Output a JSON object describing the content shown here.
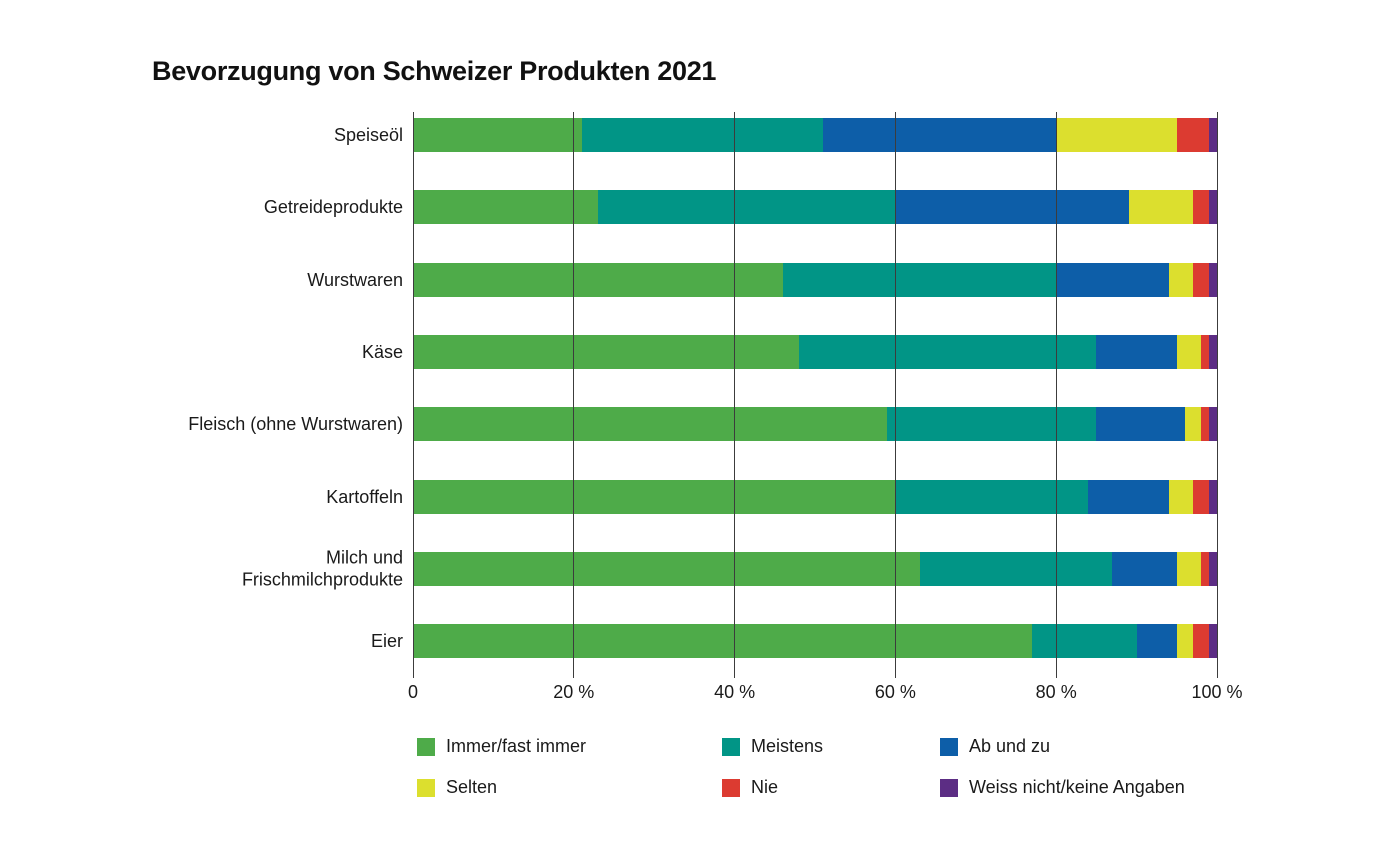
{
  "title": "Bevorzugung von Schweizer Produkten 2021",
  "chart_data": {
    "type": "bar",
    "orientation": "horizontal",
    "stacked": true,
    "title": "Bevorzugung von Schweizer Produkten 2021",
    "categories": [
      "Speiseöl",
      "Getreideprodukte",
      "Wurstwaren",
      "Käse",
      "Fleisch (ohne Wurstwaren)",
      "Kartoffeln",
      "Milch und\nFrischmilchprodukte",
      "Eier"
    ],
    "series": [
      {
        "name": "Immer/fast immer",
        "color": "#4EAB49",
        "values": [
          21,
          23,
          46,
          48,
          59,
          60,
          63,
          77
        ]
      },
      {
        "name": "Meistens",
        "color": "#019586",
        "values": [
          30,
          37,
          34,
          37,
          26,
          24,
          24,
          13
        ]
      },
      {
        "name": "Ab und zu",
        "color": "#0D5EA8",
        "values": [
          29,
          29,
          14,
          10,
          11,
          10,
          8,
          5
        ]
      },
      {
        "name": "Selten",
        "color": "#DCDF2E",
        "values": [
          15,
          8,
          3,
          3,
          2,
          3,
          3,
          2
        ]
      },
      {
        "name": "Nie",
        "color": "#DC3B31",
        "values": [
          4,
          2,
          2,
          1,
          1,
          2,
          1,
          2
        ]
      },
      {
        "name": "Weiss nicht/keine Angaben",
        "color": "#5C2D84",
        "values": [
          1,
          1,
          1,
          1,
          1,
          1,
          1,
          1
        ]
      }
    ],
    "x_ticks": [
      "0",
      "20 %",
      "40 %",
      "60 %",
      "80 %",
      "100 %"
    ],
    "x_tick_values": [
      0,
      20,
      40,
      60,
      80,
      100
    ],
    "xlim": [
      0,
      100
    ],
    "unit": "%",
    "grid": "vertical",
    "legend_position": "bottom"
  }
}
